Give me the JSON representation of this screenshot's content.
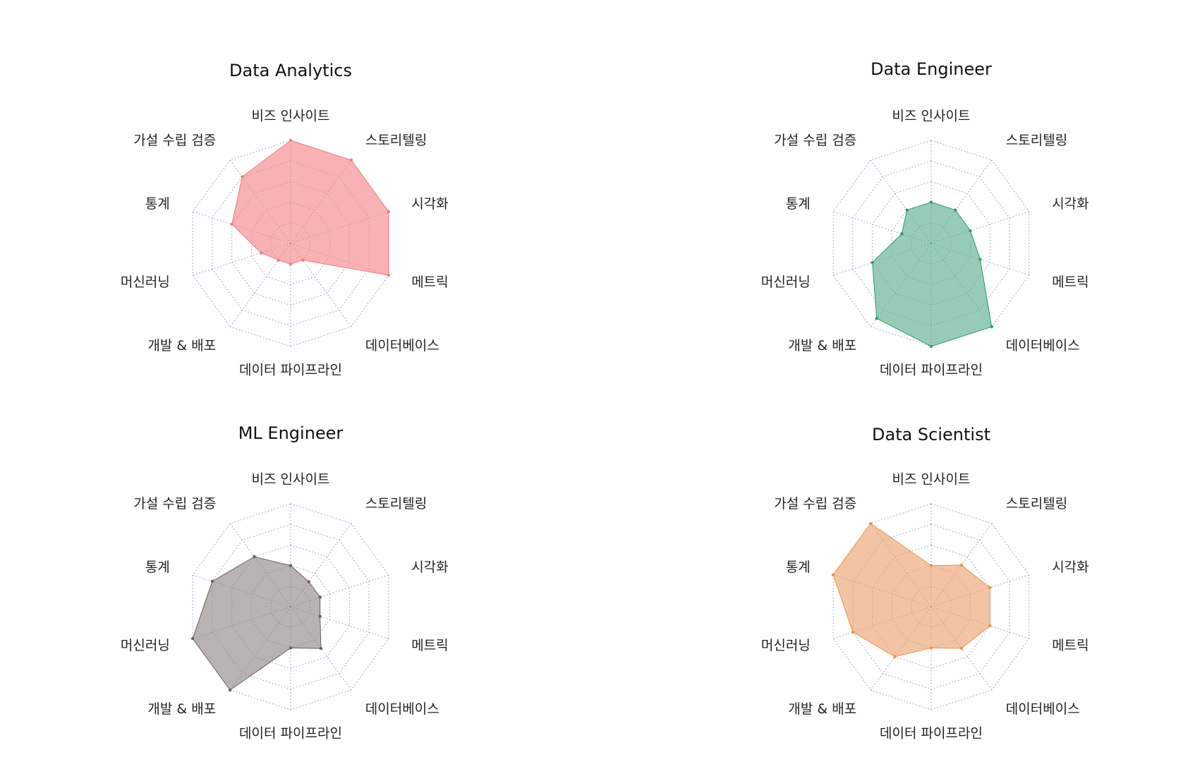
{
  "chart_data": [
    {
      "type": "radar",
      "title": "Data Analytics",
      "axes": [
        "비즈 인사이트",
        "스토리텔링",
        "시각화",
        "메트릭",
        "데이터베이스",
        "데이터 파이프라인",
        "개발 & 배포",
        "머신러닝",
        "통계",
        "가설 수립 검증"
      ],
      "values": [
        5,
        5,
        5,
        5,
        1,
        1,
        1,
        1.5,
        3,
        4
      ],
      "rmax": 5,
      "grid_levels": 5,
      "color": "#f07b7e",
      "fill": "#f4898c"
    },
    {
      "type": "radar",
      "title": "Data Engineer",
      "axes": [
        "비즈 인사이트",
        "스토리텔링",
        "시각화",
        "메트릭",
        "데이터베이스",
        "데이터 파이프라인",
        "개발 & 배포",
        "머신러닝",
        "통계",
        "가설 수립 검증"
      ],
      "values": [
        2,
        2,
        2,
        2.5,
        5,
        5,
        4.5,
        3,
        1.5,
        2
      ],
      "rmax": 5,
      "grid_levels": 5,
      "color": "#2e9a6e",
      "fill": "#5eb190"
    },
    {
      "type": "radar",
      "title": "ML Engineer",
      "axes": [
        "비즈 인사이트",
        "스토리텔링",
        "시각화",
        "메트릭",
        "데이터베이스",
        "데이터 파이프라인",
        "개발 & 배포",
        "머신러닝",
        "통계",
        "가설 수립 검증"
      ],
      "values": [
        2,
        1.5,
        1.5,
        1.5,
        2.5,
        2,
        5,
        5,
        4,
        3
      ],
      "rmax": 5,
      "grid_levels": 5,
      "color": "#6b5f5f",
      "fill": "#928888"
    },
    {
      "type": "radar",
      "title": "Data Scientist",
      "axes": [
        "비즈 인사이트",
        "스토리텔링",
        "시각화",
        "메트릭",
        "데이터베이스",
        "데이터 파이프라인",
        "개발 & 배포",
        "머신러닝",
        "통계",
        "가설 수립 검증"
      ],
      "values": [
        2,
        2.5,
        3,
        3,
        2.5,
        2,
        3,
        4,
        5,
        5
      ],
      "rmax": 5,
      "grid_levels": 5,
      "color": "#e8924f",
      "fill": "#eba571"
    }
  ]
}
